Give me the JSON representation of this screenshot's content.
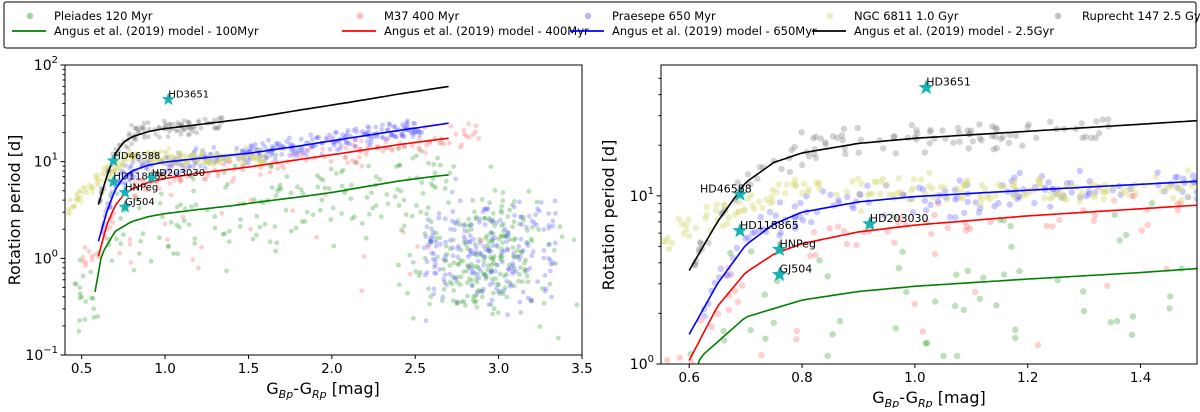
{
  "chart_data": {
    "type": "scatter",
    "legend": {
      "placement": "top",
      "entries": [
        {
          "key": "pleiades",
          "label": "Pleiades 120 Myr",
          "kind": "marker",
          "color": "#2ca02c"
        },
        {
          "key": "m37",
          "label": "M37 400 Myr",
          "kind": "marker",
          "color": "#ff6b6b"
        },
        {
          "key": "praesepe",
          "label": "Praesepe 650 Myr",
          "kind": "marker",
          "color": "#5a5aff"
        },
        {
          "key": "ngc6811",
          "label": "NGC 6811 1.0 Gyr",
          "kind": "marker",
          "color": "#d8d870"
        },
        {
          "key": "ruprecht",
          "label": "Ruprecht 147 2.5 Gyr",
          "kind": "marker",
          "color": "#777777"
        },
        {
          "key": "m100",
          "label": "Angus et al. (2019) model - 100Myr",
          "kind": "line",
          "color": "#008000"
        },
        {
          "key": "m400",
          "label": "Angus et al. (2019) model - 400Myr",
          "kind": "line",
          "color": "#ff0000"
        },
        {
          "key": "m650",
          "label": "Angus et al. (2019) model - 650Myr",
          "kind": "line",
          "color": "#0000ff"
        },
        {
          "key": "m2500",
          "label": "Angus et al. (2019) model - 2.5Gyr",
          "kind": "line",
          "color": "#000000"
        }
      ]
    },
    "panels": [
      {
        "name": "full-range",
        "xlabel": "G",
        "xlabel_sub1": "Bp",
        "xlabel_mid": "-G",
        "xlabel_sub2": "Rp",
        "xlabel_unit": " [mag]",
        "ylabel": "Rotation period [d]",
        "xlim": [
          0.4,
          3.5
        ],
        "ylim": [
          0.1,
          100
        ],
        "yscale": "log",
        "xticks": [
          "0.5",
          "1.0",
          "1.5",
          "2.0",
          "2.5",
          "3.0",
          "3.5"
        ],
        "xtick_values": [
          0.5,
          1.0,
          1.5,
          2.0,
          2.5,
          3.0,
          3.5
        ],
        "yticks": [
          {
            "base": "10",
            "exp": "−1",
            "value": 0.1
          },
          {
            "base": "10",
            "exp": "0",
            "value": 1
          },
          {
            "base": "10",
            "exp": "1",
            "value": 10
          },
          {
            "base": "10",
            "exp": "2",
            "value": 100
          }
        ],
        "model_xmax": 2.7
      },
      {
        "name": "zoom",
        "xlabel": "G",
        "xlabel_sub1": "Bp",
        "xlabel_mid": "-G",
        "xlabel_sub2": "Rp",
        "xlabel_unit": " [mag]",
        "ylabel": "Rotation period [d]",
        "xlim": [
          0.55,
          1.5
        ],
        "ylim": [
          1,
          60
        ],
        "yscale": "log",
        "xticks": [
          "0.6",
          "0.8",
          "1.0",
          "1.2",
          "1.4"
        ],
        "xtick_values": [
          0.6,
          0.8,
          1.0,
          1.2,
          1.4
        ],
        "yticks": [
          {
            "base": "10",
            "exp": "0",
            "value": 1
          },
          {
            "base": "10",
            "exp": "1",
            "value": 10
          }
        ],
        "model_xmax": 1.5
      }
    ],
    "stars": [
      {
        "name": "HD3651",
        "x": 1.02,
        "y": 44
      },
      {
        "name": "HD46588",
        "x": 0.69,
        "y": 10.2
      },
      {
        "name": "HD118865",
        "x": 0.69,
        "y": 6.2
      },
      {
        "name": "HD203030",
        "x": 0.92,
        "y": 6.8
      },
      {
        "name": "HNPeg",
        "x": 0.76,
        "y": 4.8
      },
      {
        "name": "GJ504",
        "x": 0.76,
        "y": 3.4
      }
    ],
    "models": {
      "m100": [
        [
          0.58,
          0.45
        ],
        [
          0.62,
          1.1
        ],
        [
          0.7,
          1.9
        ],
        [
          0.8,
          2.4
        ],
        [
          0.9,
          2.7
        ],
        [
          1.0,
          2.9
        ],
        [
          1.2,
          3.2
        ],
        [
          1.4,
          3.5
        ],
        [
          1.6,
          3.9
        ],
        [
          1.8,
          4.3
        ],
        [
          2.0,
          4.8
        ],
        [
          2.2,
          5.5
        ],
        [
          2.4,
          6.3
        ],
        [
          2.6,
          7.0
        ],
        [
          2.7,
          7.3
        ]
      ],
      "m400": [
        [
          0.6,
          1.05
        ],
        [
          0.65,
          2.2
        ],
        [
          0.7,
          3.5
        ],
        [
          0.75,
          4.5
        ],
        [
          0.8,
          5.2
        ],
        [
          0.9,
          6.1
        ],
        [
          1.0,
          6.7
        ],
        [
          1.2,
          7.6
        ],
        [
          1.5,
          8.8
        ],
        [
          1.8,
          10.5
        ],
        [
          2.1,
          12.5
        ],
        [
          2.4,
          15.0
        ],
        [
          2.7,
          17.5
        ]
      ],
      "m650": [
        [
          0.6,
          1.5
        ],
        [
          0.65,
          3.0
        ],
        [
          0.7,
          5.1
        ],
        [
          0.75,
          6.8
        ],
        [
          0.8,
          8.0
        ],
        [
          0.9,
          9.2
        ],
        [
          1.0,
          9.9
        ],
        [
          1.2,
          10.8
        ],
        [
          1.5,
          12.2
        ],
        [
          1.8,
          14.5
        ],
        [
          2.1,
          17.5
        ],
        [
          2.4,
          21.0
        ],
        [
          2.7,
          25.0
        ]
      ],
      "m2500": [
        [
          0.6,
          3.6
        ],
        [
          0.65,
          7.0
        ],
        [
          0.7,
          12.0
        ],
        [
          0.75,
          15.8
        ],
        [
          0.8,
          18.0
        ],
        [
          0.9,
          20.5
        ],
        [
          1.0,
          22.0
        ],
        [
          1.2,
          24.2
        ],
        [
          1.5,
          28.0
        ],
        [
          1.8,
          34.0
        ],
        [
          2.1,
          41.0
        ],
        [
          2.4,
          50.0
        ],
        [
          2.7,
          60.0
        ]
      ]
    },
    "clusters": {
      "pleiades": {
        "xmin": 0.45,
        "xmax": 3.45,
        "center_x": 2.9,
        "center_y": 1.0
      },
      "m37": {
        "xmin": 0.5,
        "xmax": 2.9
      },
      "praesepe": {
        "xmin": 0.6,
        "xmax": 3.4
      },
      "ngc6811": {
        "xmin": 0.42,
        "xmax": 1.6
      },
      "ruprecht": {
        "xmin": 0.6,
        "xmax": 1.35
      }
    }
  }
}
